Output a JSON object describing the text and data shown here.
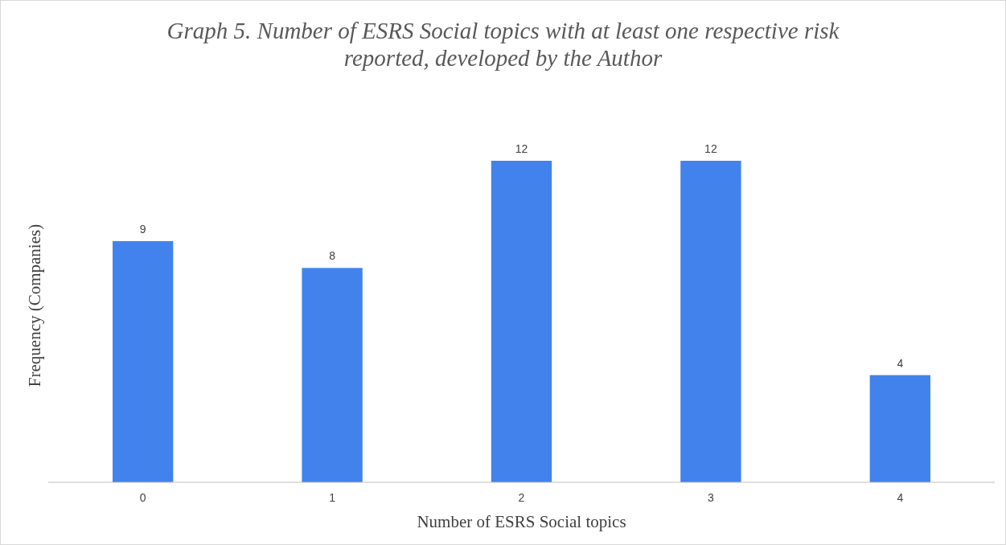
{
  "chart_data": {
    "type": "bar",
    "title": "Graph 5. Number of ESRS Social topics with at least one respective risk reported, developed by the Author",
    "xlabel": "Number of ESRS Social topics",
    "ylabel": "Frequency (Companies)",
    "categories": [
      "0",
      "1",
      "2",
      "3",
      "4"
    ],
    "values": [
      9,
      8,
      12,
      12,
      4
    ],
    "color": "#4282ec",
    "data_labels": true
  }
}
